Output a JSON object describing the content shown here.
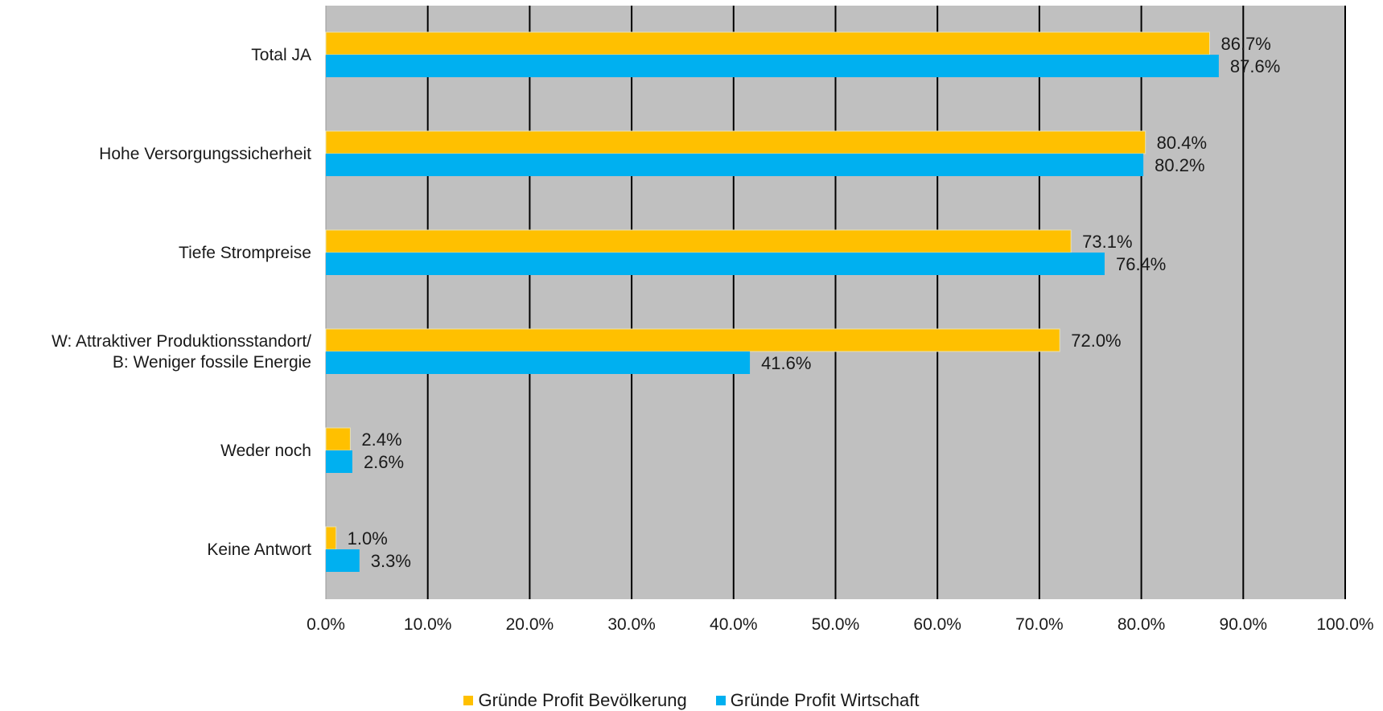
{
  "chart_data": {
    "type": "bar",
    "orientation": "horizontal",
    "categories": [
      [
        "Total JA"
      ],
      [
        "Hohe Versorgungssicherheit"
      ],
      [
        "Tiefe Strompreise"
      ],
      [
        "W: Attraktiver Produktionsstandort/",
        "B: Weniger fossile Energie"
      ],
      [
        "Weder noch"
      ],
      [
        "Keine Antwort"
      ]
    ],
    "series": [
      {
        "name": "Gründe Profit Bevölkerung",
        "color": "#FFC000",
        "values": [
          86.7,
          80.4,
          73.1,
          72.0,
          2.4,
          1.0
        ],
        "labels": [
          "86.7%",
          "80.4%",
          "73.1%",
          "72.0%",
          "2.4%",
          "1.0%"
        ]
      },
      {
        "name": "Gründe Profit Wirtschaft",
        "color": "#00B0F0",
        "values": [
          87.6,
          80.2,
          76.4,
          41.6,
          2.6,
          3.3
        ],
        "labels": [
          "87.6%",
          "80.2%",
          "76.4%",
          "41.6%",
          "2.6%",
          "3.3%"
        ]
      }
    ],
    "xlim": [
      0,
      100
    ],
    "xticks": [
      "0.0%",
      "10.0%",
      "20.0%",
      "30.0%",
      "40.0%",
      "50.0%",
      "60.0%",
      "70.0%",
      "80.0%",
      "90.0%",
      "100.0%"
    ],
    "plot_background": "#C0C0C0",
    "gridline_color": "#000000",
    "grid": true,
    "legend_position": "bottom"
  }
}
